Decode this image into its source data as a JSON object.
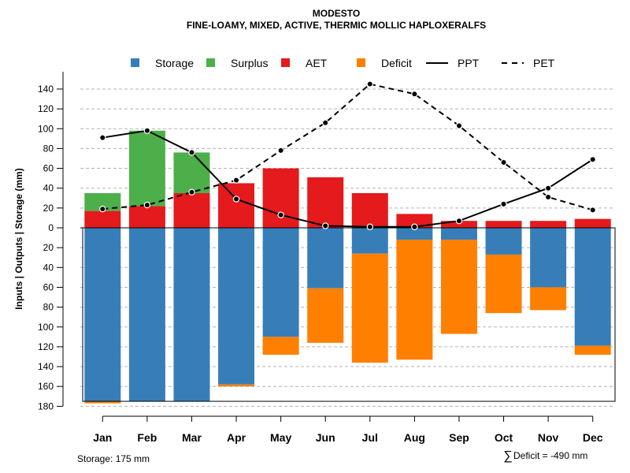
{
  "chart_data": {
    "type": "bar",
    "title": "MODESTO",
    "subtitle": "FINE-LOAMY, MIXED, ACTIVE, THERMIC MOLLIC HAPLOXERALFS",
    "ylabel": "Inputs | Outputs | Storage    (mm)",
    "ylim": [
      -180,
      150
    ],
    "yticks": [
      140,
      120,
      100,
      80,
      60,
      40,
      20,
      0,
      -20,
      -40,
      -60,
      -80,
      -100,
      -120,
      -140,
      -160,
      -180
    ],
    "ytick_labels": [
      "140",
      "120",
      "100",
      "80",
      "60",
      "40",
      "20",
      "0",
      "20",
      "40",
      "60",
      "80",
      "100",
      "120",
      "140",
      "160",
      "180"
    ],
    "grid": true,
    "categories": [
      "Jan",
      "Feb",
      "Mar",
      "Apr",
      "May",
      "Jun",
      "Jul",
      "Aug",
      "Sep",
      "Oct",
      "Nov",
      "Dec"
    ],
    "legend": [
      "Storage",
      "Surplus",
      "AET",
      "Deficit",
      "PPT",
      "PET"
    ],
    "colors": {
      "storage": "#377EB8",
      "surplus": "#4DAF4A",
      "aet": "#E41A1C",
      "deficit": "#FF7F00",
      "ppt": "#000000",
      "pet": "#000000"
    },
    "series": {
      "aet": [
        17,
        22,
        35,
        45,
        60,
        51,
        35,
        14,
        7,
        7,
        7,
        9
      ],
      "surplus": [
        18,
        76,
        41,
        0,
        0,
        0,
        0,
        0,
        0,
        0,
        0,
        0
      ],
      "storage": [
        175,
        175,
        175,
        158,
        110,
        61,
        26,
        12,
        12,
        27,
        60,
        119
      ],
      "deficit": [
        2,
        0,
        0,
        2,
        18,
        55,
        110,
        121,
        95,
        59,
        23,
        9
      ],
      "ppt": [
        91,
        98,
        76,
        29,
        13,
        2,
        1,
        1,
        7,
        24,
        40,
        69
      ],
      "pet": [
        19,
        23,
        36,
        48,
        78,
        106,
        145,
        135,
        103,
        66,
        31,
        18
      ]
    }
  },
  "footer": {
    "storage_text": "Storage: 175 mm",
    "deficit_symbol": "∑",
    "deficit_text": "Deficit = -490 mm"
  }
}
